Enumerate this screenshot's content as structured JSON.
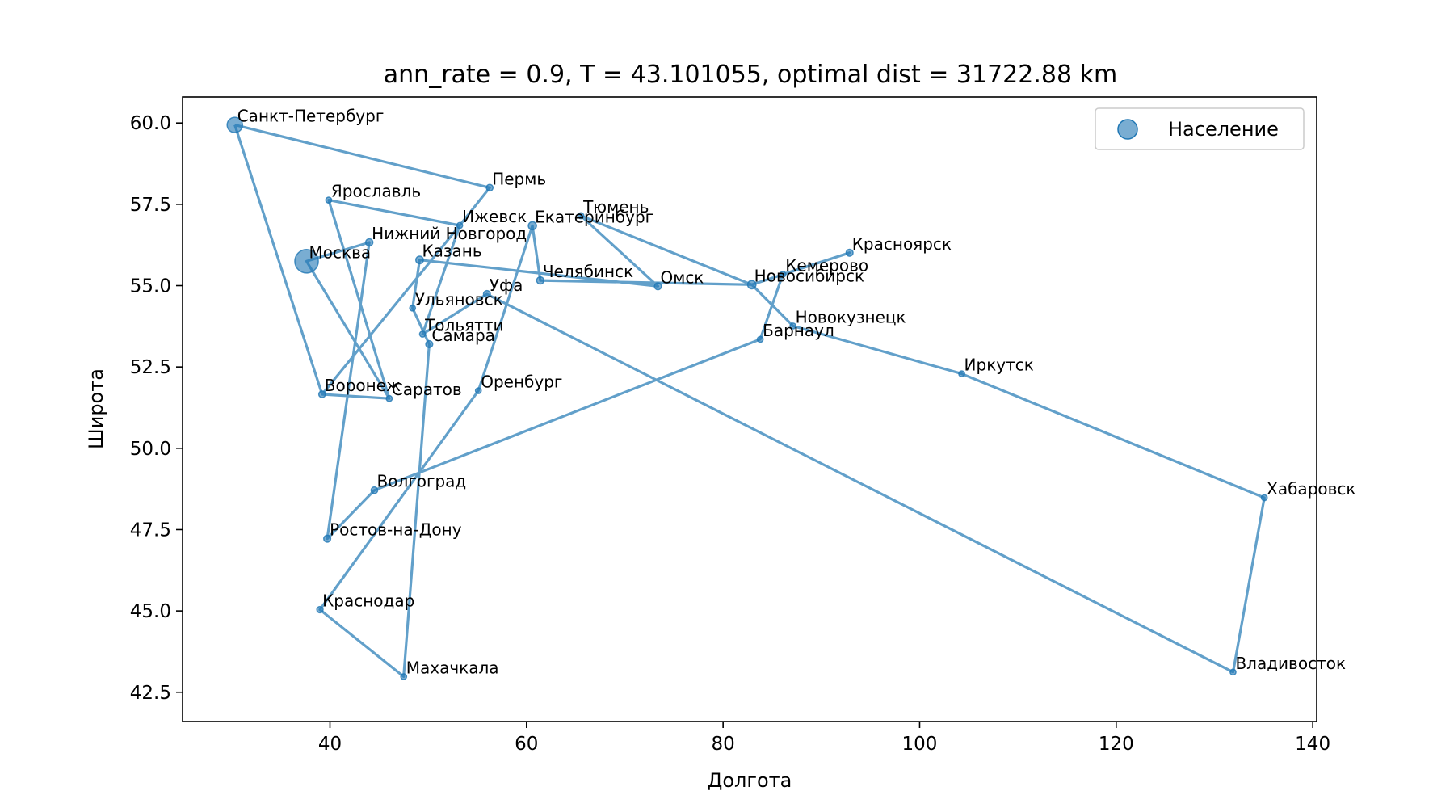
{
  "chart_data": {
    "type": "scatter",
    "title": "ann_rate = 0.9, T = 43.101055, optimal dist = 31722.88 km",
    "xlabel": "Долгота",
    "ylabel": "Широта",
    "xlim": [
      25,
      140.4
    ],
    "ylim": [
      41.6,
      60.8
    ],
    "xticks": [
      40,
      60,
      80,
      100,
      120,
      140
    ],
    "yticks": [
      42.5,
      45.0,
      47.5,
      50.0,
      52.5,
      55.0,
      57.5,
      60.0
    ],
    "ytick_labels": [
      "42.5",
      "45.0",
      "47.5",
      "50.0",
      "52.5",
      "55.0",
      "57.5",
      "60.0"
    ],
    "xtick_labels": [
      "40",
      "60",
      "80",
      "100",
      "120",
      "140"
    ],
    "grid": false,
    "legend": {
      "position": "top-right",
      "entries": [
        "Население"
      ]
    },
    "series_color": "#1f77b4",
    "cities": [
      {
        "name": "Москва",
        "lon": 37.62,
        "lat": 55.75,
        "size": 12.6
      },
      {
        "name": "Санкт-Петербург",
        "lon": 30.32,
        "lat": 59.94,
        "size": 5.4
      },
      {
        "name": "Новосибирск",
        "lon": 82.92,
        "lat": 55.03,
        "size": 1.6
      },
      {
        "name": "Екатеринбург",
        "lon": 60.6,
        "lat": 56.84,
        "size": 1.5
      },
      {
        "name": "Казань",
        "lon": 49.12,
        "lat": 55.79,
        "size": 1.3
      },
      {
        "name": "Нижний Новгород",
        "lon": 44.0,
        "lat": 56.33,
        "size": 1.2
      },
      {
        "name": "Челябинск",
        "lon": 61.4,
        "lat": 55.16,
        "size": 1.2
      },
      {
        "name": "Самара",
        "lon": 50.1,
        "lat": 53.2,
        "size": 1.1
      },
      {
        "name": "Омск",
        "lon": 73.37,
        "lat": 54.98,
        "size": 1.1
      },
      {
        "name": "Уфа",
        "lon": 55.97,
        "lat": 54.74,
        "size": 1.1
      },
      {
        "name": "Красноярск",
        "lon": 92.87,
        "lat": 56.01,
        "size": 1.1
      },
      {
        "name": "Воронеж",
        "lon": 39.2,
        "lat": 51.66,
        "size": 1.0
      },
      {
        "name": "Пермь",
        "lon": 56.25,
        "lat": 58.01,
        "size": 1.0
      },
      {
        "name": "Волгоград",
        "lon": 44.52,
        "lat": 48.71,
        "size": 1.0
      },
      {
        "name": "Краснодар",
        "lon": 38.98,
        "lat": 45.04,
        "size": 0.9
      },
      {
        "name": "Саратов",
        "lon": 46.03,
        "lat": 51.53,
        "size": 0.8
      },
      {
        "name": "Тюмень",
        "lon": 65.53,
        "lat": 57.15,
        "size": 0.8
      },
      {
        "name": "Тольятти",
        "lon": 49.42,
        "lat": 53.51,
        "size": 0.7
      },
      {
        "name": "Ижевск",
        "lon": 53.2,
        "lat": 56.85,
        "size": 0.65
      },
      {
        "name": "Барнаул",
        "lon": 83.78,
        "lat": 53.35,
        "size": 0.63
      },
      {
        "name": "Ульяновск",
        "lon": 48.4,
        "lat": 54.31,
        "size": 0.62
      },
      {
        "name": "Иркутск",
        "lon": 104.28,
        "lat": 52.29,
        "size": 0.62
      },
      {
        "name": "Хабаровск",
        "lon": 135.07,
        "lat": 48.48,
        "size": 0.62
      },
      {
        "name": "Ярославль",
        "lon": 39.87,
        "lat": 57.63,
        "size": 0.6
      },
      {
        "name": "Владивосток",
        "lon": 131.89,
        "lat": 43.12,
        "size": 0.6
      },
      {
        "name": "Махачкала",
        "lon": 47.5,
        "lat": 42.98,
        "size": 0.6
      },
      {
        "name": "Оренбург",
        "lon": 55.1,
        "lat": 51.77,
        "size": 0.56
      },
      {
        "name": "Кемерово",
        "lon": 86.09,
        "lat": 55.35,
        "size": 0.55
      },
      {
        "name": "Новокузнецк",
        "lon": 87.11,
        "lat": 53.76,
        "size": 0.55
      },
      {
        "name": "Ростов-на-Дону",
        "lon": 39.72,
        "lat": 47.22,
        "size": 1.1
      }
    ],
    "route": [
      "Санкт-Петербург",
      "Пермь",
      "Ижевск",
      "Ярославль",
      "Саратов",
      "Москва",
      "Нижний Новгород",
      "Ростов-на-Дону",
      "Волгоград",
      "Барнаул",
      "Кемерово",
      "Красноярск",
      "Новосибирск",
      "Тюмень",
      "Омск",
      "Казань",
      "Ульяновск",
      "Самара",
      "Махачкала",
      "Краснодар",
      "Оренбург",
      "Екатеринбург",
      "Челябинск",
      "Новосибирск",
      "Новокузнецк",
      "Иркутск",
      "Хабаровск",
      "Владивосток",
      "Уфа",
      "Тольятти",
      "Ижевск",
      "Воронеж",
      "Саратов",
      "Воронеж",
      "Санкт-Петербург"
    ]
  }
}
